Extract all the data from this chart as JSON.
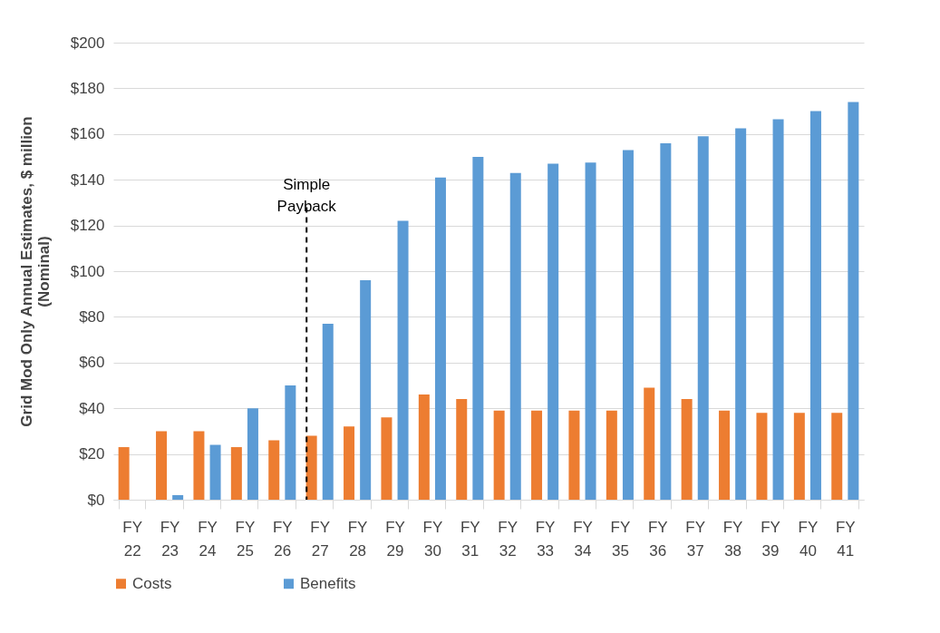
{
  "chart_data": {
    "type": "bar",
    "ylabel": "Grid Mod Only Annual Estimates, $ million (Nominal)",
    "categories": [
      "FY 22",
      "FY 23",
      "FY 24",
      "FY 25",
      "FY 26",
      "FY 27",
      "FY 28",
      "FY 29",
      "FY 30",
      "FY 31",
      "FY 32",
      "FY 33",
      "FY 34",
      "FY 35",
      "FY 36",
      "FY 37",
      "FY 38",
      "FY 39",
      "FY 40",
      "FY 41"
    ],
    "series": [
      {
        "name": "Costs",
        "color": "#ed7d31",
        "values": [
          23,
          30,
          30,
          23,
          26,
          28,
          32,
          36,
          46,
          44,
          39,
          39,
          39,
          39,
          49,
          44,
          39,
          38,
          38,
          38
        ]
      },
      {
        "name": "Benefits",
        "color": "#5b9bd5",
        "values": [
          null,
          2,
          24,
          40,
          50,
          77,
          96,
          122,
          141,
          150,
          143,
          147,
          147.5,
          153,
          156,
          159,
          162.5,
          166.5,
          170,
          174
        ]
      }
    ],
    "ylim": [
      0,
      200
    ],
    "yticks": [
      {
        "value": 0,
        "label": "$0"
      },
      {
        "value": 20,
        "label": "$20"
      },
      {
        "value": 40,
        "label": "$40"
      },
      {
        "value": 60,
        "label": "$60"
      },
      {
        "value": 80,
        "label": "$80"
      },
      {
        "value": 100,
        "label": "$100"
      },
      {
        "value": 120,
        "label": "$120"
      },
      {
        "value": 140,
        "label": "$140"
      },
      {
        "value": 160,
        "label": "$160"
      },
      {
        "value": 180,
        "label": "$180"
      },
      {
        "value": 200,
        "label": "$200"
      }
    ],
    "ref_lines": [
      {
        "axis": "x",
        "value": "FY 27",
        "label": "Simple Payback",
        "line_style": "dashed"
      }
    ],
    "grid": "y",
    "legend": "bottom"
  }
}
